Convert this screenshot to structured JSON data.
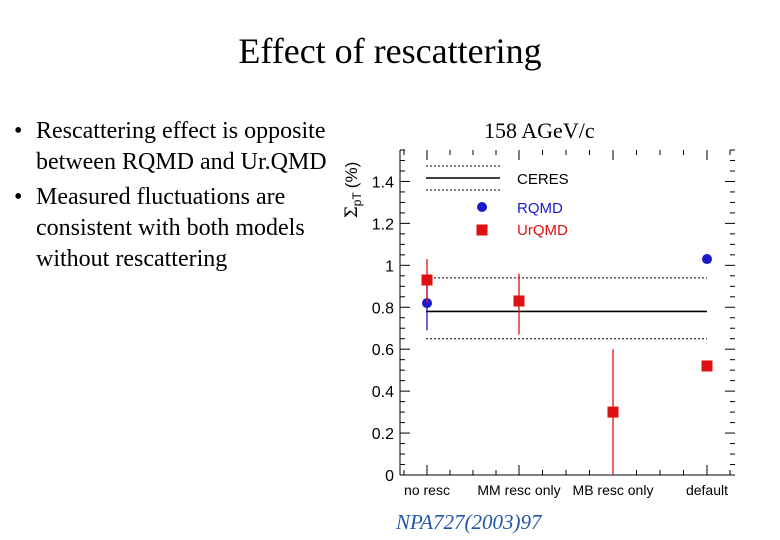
{
  "slide": {
    "title": "Effect of rescattering",
    "bullets": [
      "Rescattering effect is opposite between RQMD and Ur.QMD",
      "Measured fluctuations are consistent with both models without rescattering"
    ],
    "bullet_glyph": "•",
    "citation": "NPA727(2003)97"
  },
  "chart_data": {
    "type": "scatter",
    "title": "158 AGeV/c",
    "ylabel": "Σpt (%)",
    "ylabel_main": "Σ",
    "ylabel_sub": "pT",
    "ylabel_unit": "(%)",
    "xlabel": "",
    "categories": [
      "no resc",
      "MM resc only",
      "MB resc only",
      "default"
    ],
    "ylim": [
      0,
      1.55
    ],
    "yticks": [
      0,
      0.2,
      0.4,
      0.6,
      0.8,
      1,
      1.2,
      1.4
    ],
    "ytick_labels": [
      "0",
      "0.2",
      "0.4",
      "0.6",
      "0.8",
      "1",
      "1.2",
      "1.4"
    ],
    "legend_placement": "top-left",
    "series": [
      {
        "name": "CERES",
        "kind": "band",
        "color": "#000000",
        "value": 0.78,
        "band": [
          0.65,
          0.94
        ]
      },
      {
        "name": "RQMD",
        "kind": "points",
        "marker": "circle",
        "color": "#1a1acc",
        "points": [
          {
            "category": "no resc",
            "y": 0.82,
            "err_low": 0.69,
            "err_high": 0.91
          },
          {
            "category": "default",
            "y": 1.03
          }
        ]
      },
      {
        "name": "UrQMD",
        "kind": "points",
        "marker": "square",
        "color": "#dd1111",
        "points": [
          {
            "category": "no resc",
            "y": 0.93,
            "err_low": 0.82,
            "err_high": 1.03
          },
          {
            "category": "MM resc only",
            "y": 0.83,
            "err_low": 0.67,
            "err_high": 0.96
          },
          {
            "category": "MB resc only",
            "y": 0.3,
            "err_low": 0.0,
            "err_high": 0.6
          },
          {
            "category": "default",
            "y": 0.52
          }
        ]
      }
    ]
  }
}
